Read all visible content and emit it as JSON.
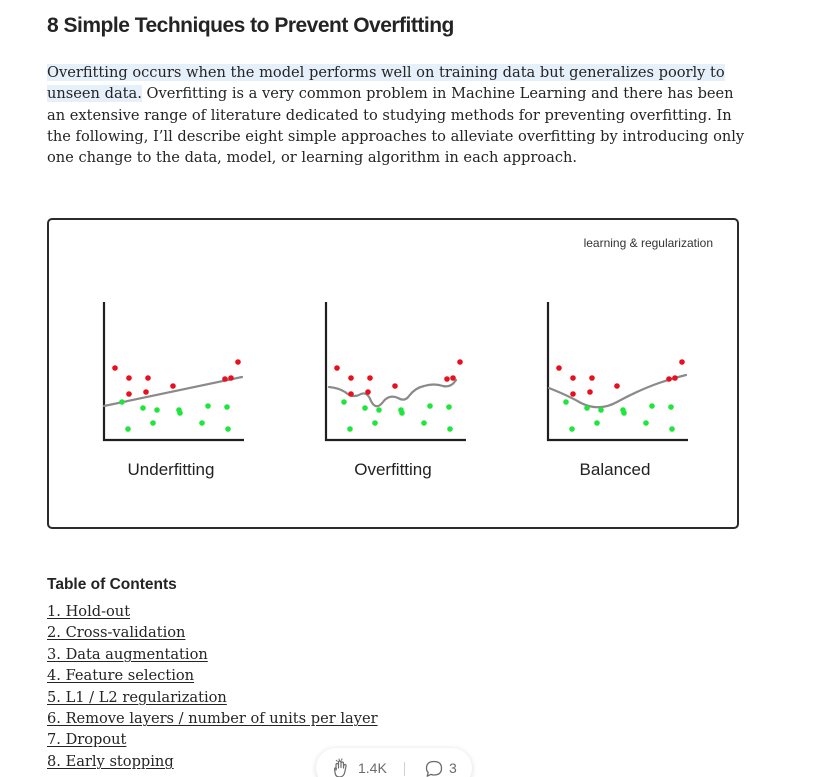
{
  "article": {
    "title": "8 Simple Techniques to Prevent Overfitting",
    "intro_highlight": "Overfitting occurs when the model performs well on training data but generalizes poorly to unseen data.",
    "intro_rest": " Overfitting is a very common problem in Machine Learning and there has been an extensive range of literature dedicated to studying methods for preventing overfitting. In the following, I’ll describe eight simple approaches to alleviate overfitting by introducing only one change to the data, model, or learning algorithm in each approach."
  },
  "figure": {
    "tag": "learning & regularization",
    "panels": [
      {
        "label": "Underfitting"
      },
      {
        "label": "Overfitting"
      },
      {
        "label": "Balanced"
      }
    ],
    "colors": {
      "red_points": "#e8101e",
      "green_points": "#1ee63c",
      "fit_curve": "#8a8a8a",
      "axes": "#1f1f1f"
    }
  },
  "toc": {
    "heading": "Table of Contents",
    "items": [
      "1. Hold-out",
      "2. Cross-validation",
      "3. Data augmentation",
      "4. Feature selection",
      "5. L1 / L2 regularization",
      "6. Remove layers / number of units per layer",
      "7. Dropout",
      "8. Early stopping"
    ]
  },
  "actions": {
    "clap_icon": "clap-icon",
    "clap_count": "1.4K",
    "response_icon": "speech-bubble-icon",
    "response_count": "3"
  }
}
